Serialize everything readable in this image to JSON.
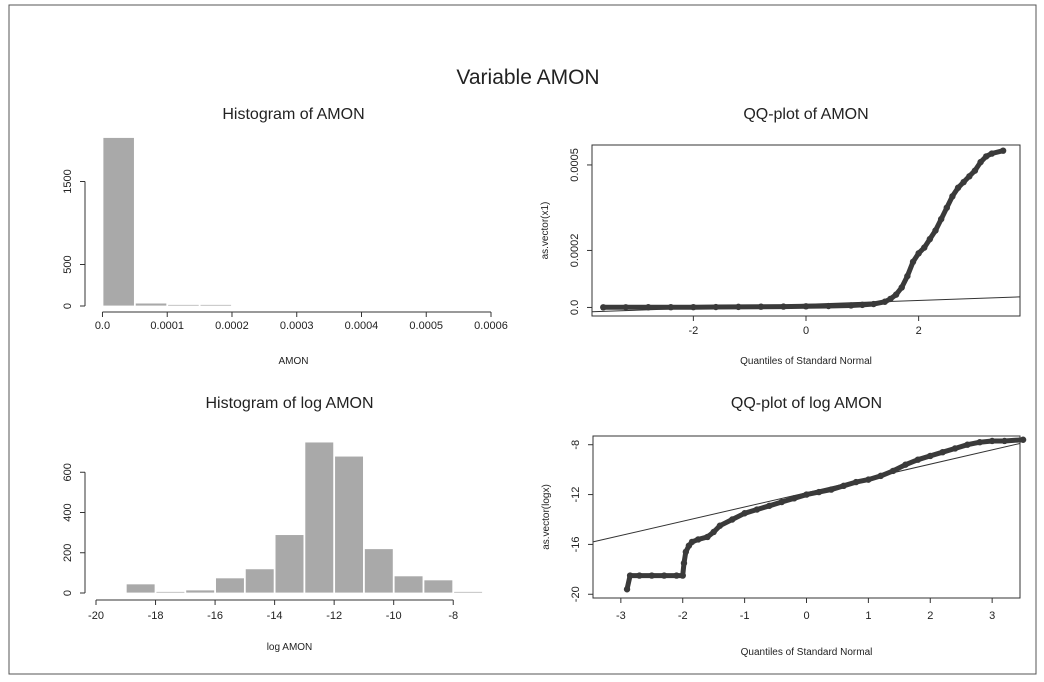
{
  "title": "Variable AMON",
  "chart_data": [
    {
      "type": "bar",
      "title": "Histogram of  AMON",
      "xlabel": "AMON",
      "ylabel": "",
      "xlim": [
        -1e-05,
        0.0006
      ],
      "ylim": [
        0,
        2000
      ],
      "xticks": [
        0.0,
        0.0001,
        0.0002,
        0.0003,
        0.0004,
        0.0005,
        0.0006
      ],
      "xtick_labels": [
        "0.0",
        "0.0001",
        "0.0002",
        "0.0003",
        "0.0004",
        "0.0005",
        "0.0006"
      ],
      "yticks": [
        0,
        500,
        1500
      ],
      "ytick_labels": [
        "0",
        "500",
        "1500"
      ],
      "bins": [
        {
          "x0": 0.0,
          "x1": 5e-05,
          "value": 2030
        },
        {
          "x0": 5e-05,
          "x1": 0.0001,
          "value": 35
        },
        {
          "x0": 0.0001,
          "x1": 0.00015,
          "value": 10
        },
        {
          "x0": 0.00015,
          "x1": 0.0002,
          "value": 6
        }
      ]
    },
    {
      "type": "scatter",
      "title": "QQ-plot of  AMON",
      "xlabel": "Quantiles of Standard Normal",
      "ylabel": "as.vector(x1)",
      "xlim": [
        -3.8,
        3.8
      ],
      "ylim": [
        -3e-05,
        0.00057
      ],
      "xticks": [
        -2,
        0,
        2
      ],
      "xtick_labels": [
        "-2",
        "0",
        "2"
      ],
      "yticks": [
        0.0,
        0.0002,
        0.0005
      ],
      "ytick_labels": [
        "0.0",
        "0.0002",
        "0.0005"
      ],
      "reference_line": [
        [
          -3.8,
          -1.5e-05
        ],
        [
          3.8,
          3.7e-05
        ]
      ],
      "quantile_curve": [
        [
          -3.6,
          5e-07
        ],
        [
          -3.2,
          6e-07
        ],
        [
          -2.8,
          7e-07
        ],
        [
          -2.4,
          8e-07
        ],
        [
          -2.0,
          1e-06
        ],
        [
          -1.6,
          1.5e-06
        ],
        [
          -1.2,
          2e-06
        ],
        [
          -0.8,
          2.5e-06
        ],
        [
          -0.4,
          3e-06
        ],
        [
          0.0,
          4e-06
        ],
        [
          0.4,
          5e-06
        ],
        [
          0.8,
          7e-06
        ],
        [
          1.0,
          9e-06
        ],
        [
          1.2,
          1.2e-05
        ],
        [
          1.4,
          2e-05
        ],
        [
          1.5,
          3e-05
        ],
        [
          1.6,
          4.5e-05
        ],
        [
          1.7,
          7e-05
        ],
        [
          1.8,
          0.00011
        ],
        [
          1.9,
          0.00016
        ],
        [
          2.0,
          0.00019
        ],
        [
          2.1,
          0.00021
        ],
        [
          2.2,
          0.00024
        ],
        [
          2.3,
          0.00027
        ],
        [
          2.4,
          0.00031
        ],
        [
          2.5,
          0.00035
        ],
        [
          2.6,
          0.00039
        ],
        [
          2.7,
          0.00042
        ],
        [
          2.8,
          0.00044
        ],
        [
          2.9,
          0.00046
        ],
        [
          3.0,
          0.00048
        ],
        [
          3.1,
          0.00051
        ],
        [
          3.2,
          0.00053
        ],
        [
          3.3,
          0.00054
        ],
        [
          3.5,
          0.00055
        ]
      ]
    },
    {
      "type": "bar",
      "title": "Histogram of  log AMON",
      "xlabel": "log AMON",
      "ylabel": "",
      "xlim": [
        -20,
        -7
      ],
      "ylim": [
        0,
        800
      ],
      "xticks": [
        -20,
        -18,
        -16,
        -14,
        -12,
        -10,
        -8
      ],
      "xtick_labels": [
        "-20",
        "-18",
        "-16",
        "-14",
        "-12",
        "-10",
        "-8"
      ],
      "yticks": [
        0,
        200,
        400,
        600
      ],
      "ytick_labels": [
        "0",
        "200",
        "400",
        "600"
      ],
      "bins": [
        {
          "x0": -19,
          "x1": -18,
          "value": 45
        },
        {
          "x0": -18,
          "x1": -17,
          "value": 0
        },
        {
          "x0": -17,
          "x1": -16,
          "value": 15
        },
        {
          "x0": -16,
          "x1": -15,
          "value": 75
        },
        {
          "x0": -15,
          "x1": -14,
          "value": 120
        },
        {
          "x0": -14,
          "x1": -13,
          "value": 290
        },
        {
          "x0": -13,
          "x1": -12,
          "value": 750
        },
        {
          "x0": -12,
          "x1": -11,
          "value": 680
        },
        {
          "x0": -11,
          "x1": -10,
          "value": 220
        },
        {
          "x0": -10,
          "x1": -9,
          "value": 85
        },
        {
          "x0": -9,
          "x1": -8,
          "value": 65
        },
        {
          "x0": -8,
          "x1": -7,
          "value": 5
        }
      ]
    },
    {
      "type": "scatter",
      "title": "QQ-plot of  log AMON",
      "xlabel": "Quantiles of Standard Normal",
      "ylabel": "as.vector(logx)",
      "xlim": [
        -3.45,
        3.45
      ],
      "ylim": [
        -20.3,
        -7.3
      ],
      "xticks": [
        -3,
        -2,
        -1,
        0,
        1,
        2,
        3
      ],
      "xtick_labels": [
        "-3",
        "-2",
        "-1",
        "0",
        "1",
        "2",
        "3"
      ],
      "yticks": [
        -20,
        -16,
        -12,
        -8
      ],
      "ytick_labels": [
        "-20",
        "-16",
        "-12",
        "-8"
      ],
      "reference_line": [
        [
          -3.45,
          -15.8
        ],
        [
          3.45,
          -7.9
        ]
      ],
      "quantile_curve": [
        [
          -2.9,
          -19.6
        ],
        [
          -2.85,
          -18.5
        ],
        [
          -2.7,
          -18.5
        ],
        [
          -2.5,
          -18.5
        ],
        [
          -2.3,
          -18.5
        ],
        [
          -2.1,
          -18.5
        ],
        [
          -2.0,
          -18.5
        ],
        [
          -1.98,
          -17.5
        ],
        [
          -1.95,
          -16.6
        ],
        [
          -1.9,
          -16.1
        ],
        [
          -1.85,
          -15.8
        ],
        [
          -1.75,
          -15.6
        ],
        [
          -1.6,
          -15.4
        ],
        [
          -1.5,
          -15.0
        ],
        [
          -1.4,
          -14.5
        ],
        [
          -1.2,
          -14.0
        ],
        [
          -1.0,
          -13.5
        ],
        [
          -0.8,
          -13.2
        ],
        [
          -0.6,
          -12.9
        ],
        [
          -0.4,
          -12.6
        ],
        [
          -0.2,
          -12.3
        ],
        [
          0.0,
          -12.0
        ],
        [
          0.2,
          -11.8
        ],
        [
          0.4,
          -11.6
        ],
        [
          0.6,
          -11.3
        ],
        [
          0.8,
          -11.0
        ],
        [
          1.0,
          -10.8
        ],
        [
          1.2,
          -10.5
        ],
        [
          1.4,
          -10.1
        ],
        [
          1.6,
          -9.6
        ],
        [
          1.8,
          -9.2
        ],
        [
          2.0,
          -8.9
        ],
        [
          2.2,
          -8.6
        ],
        [
          2.4,
          -8.3
        ],
        [
          2.6,
          -8.0
        ],
        [
          2.8,
          -7.8
        ],
        [
          3.0,
          -7.7
        ],
        [
          3.2,
          -7.7
        ],
        [
          3.5,
          -7.6
        ]
      ]
    }
  ]
}
